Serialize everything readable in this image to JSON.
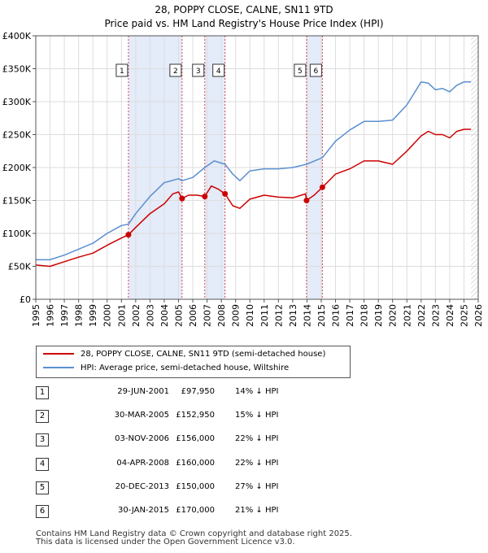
{
  "chart_data": {
    "type": "line",
    "title": "28, POPPY CLOSE, CALNE, SN11 9TD",
    "subtitle": "Price paid vs. HM Land Registry's House Price Index (HPI)",
    "xlabel": "",
    "ylabel": "",
    "xlim": [
      1995.0,
      2026.0
    ],
    "ylim": [
      0,
      400000
    ],
    "y_ticks": [
      0,
      50000,
      100000,
      150000,
      200000,
      250000,
      300000,
      350000,
      400000
    ],
    "y_tick_labels": [
      "£0",
      "£50K",
      "£100K",
      "£150K",
      "£200K",
      "£250K",
      "£300K",
      "£350K",
      "£400K"
    ],
    "x_ticks": [
      1995,
      1996,
      1997,
      1998,
      1999,
      2000,
      2001,
      2002,
      2003,
      2004,
      2005,
      2006,
      2007,
      2008,
      2009,
      2010,
      2011,
      2012,
      2013,
      2014,
      2015,
      2016,
      2017,
      2018,
      2019,
      2020,
      2021,
      2022,
      2023,
      2024,
      2025,
      2026
    ],
    "x_tick_labels": [
      "1995",
      "1996",
      "1997",
      "1998",
      "1999",
      "2000",
      "2001",
      "2002",
      "2003",
      "2004",
      "2005",
      "2006",
      "2007",
      "2008",
      "2009",
      "2010",
      "2011",
      "2012",
      "2013",
      "2014",
      "2015",
      "2016",
      "2017",
      "2018",
      "2019",
      "2020",
      "2021",
      "2022",
      "2023",
      "2024",
      "2025",
      "2026"
    ],
    "grid": true,
    "shaded_periods": [
      [
        2001.49,
        2005.25
      ],
      [
        2006.84,
        2008.26
      ],
      [
        2013.97,
        2015.08
      ]
    ],
    "future_hatch_from": 2025.5,
    "series": [
      {
        "name": "28, POPPY CLOSE, CALNE, SN11 9TD (semi-detached house)",
        "color": "#cc0000",
        "x": [
          1995.0,
          1996.0,
          1997.0,
          1998.0,
          1999.0,
          2000.0,
          2001.0,
          2001.49,
          2002.0,
          2003.0,
          2004.0,
          2004.6,
          2005.0,
          2005.25,
          2005.7,
          2006.3,
          2006.84,
          2007.3,
          2007.8,
          2008.26,
          2008.8,
          2009.3,
          2010.0,
          2011.0,
          2012.0,
          2013.0,
          2013.9,
          2013.97,
          2014.5,
          2015.08,
          2016.0,
          2017.0,
          2018.0,
          2019.0,
          2020.0,
          2021.0,
          2022.0,
          2022.5,
          2023.0,
          2023.5,
          2024.0,
          2024.5,
          2025.0,
          2025.5
        ],
        "values": [
          52000,
          50000,
          57000,
          64000,
          70000,
          82000,
          93000,
          97950,
          109000,
          130000,
          145000,
          160000,
          163000,
          152950,
          158000,
          158000,
          156000,
          172000,
          167000,
          160000,
          142000,
          138000,
          152000,
          158000,
          155000,
          154000,
          160000,
          150000,
          158000,
          170000,
          190000,
          198000,
          210000,
          210000,
          205000,
          225000,
          248000,
          255000,
          250000,
          250000,
          245000,
          255000,
          258000,
          258000
        ]
      },
      {
        "name": "HPI: Average price, semi-detached house, Wiltshire",
        "color": "#5b8fd0",
        "x": [
          1995.0,
          1996.0,
          1997.0,
          1998.0,
          1999.0,
          2000.0,
          2001.0,
          2001.49,
          2002.0,
          2003.0,
          2004.0,
          2005.0,
          2005.25,
          2006.0,
          2006.84,
          2007.5,
          2008.26,
          2008.8,
          2009.3,
          2010.0,
          2011.0,
          2012.0,
          2013.0,
          2013.97,
          2015.08,
          2016.0,
          2017.0,
          2018.0,
          2019.0,
          2020.0,
          2021.0,
          2022.0,
          2022.5,
          2023.0,
          2023.5,
          2024.0,
          2024.5,
          2025.0,
          2025.5
        ],
        "values": [
          60000,
          60000,
          67000,
          76000,
          85000,
          100000,
          112000,
          114000,
          130000,
          156000,
          177000,
          183000,
          180000,
          185000,
          200000,
          210000,
          205000,
          190000,
          180000,
          195000,
          198000,
          198000,
          200000,
          205000,
          215000,
          240000,
          257000,
          270000,
          270000,
          272000,
          295000,
          330000,
          328000,
          318000,
          320000,
          315000,
          325000,
          330000,
          330000
        ]
      }
    ],
    "sales_markers": [
      {
        "label": "1",
        "x": 2001.49,
        "y": 97950
      },
      {
        "label": "2",
        "x": 2005.25,
        "y": 152950
      },
      {
        "label": "3",
        "x": 2006.84,
        "y": 156000
      },
      {
        "label": "4",
        "x": 2008.26,
        "y": 160000
      },
      {
        "label": "5",
        "x": 2013.97,
        "y": 150000
      },
      {
        "label": "6",
        "x": 2015.08,
        "y": 170000
      }
    ]
  },
  "legend": {
    "property_label": "28, POPPY CLOSE, CALNE, SN11 9TD (semi-detached house)",
    "hpi_label": "HPI: Average price, semi-detached house, Wiltshire"
  },
  "sales": [
    {
      "num": "1",
      "date": "29-JUN-2001",
      "price": "£97,950",
      "hpi": "14% ↓ HPI"
    },
    {
      "num": "2",
      "date": "30-MAR-2005",
      "price": "£152,950",
      "hpi": "15% ↓ HPI"
    },
    {
      "num": "3",
      "date": "03-NOV-2006",
      "price": "£156,000",
      "hpi": "22% ↓ HPI"
    },
    {
      "num": "4",
      "date": "04-APR-2008",
      "price": "£160,000",
      "hpi": "22% ↓ HPI"
    },
    {
      "num": "5",
      "date": "20-DEC-2013",
      "price": "£150,000",
      "hpi": "27% ↓ HPI"
    },
    {
      "num": "6",
      "date": "30-JAN-2015",
      "price": "£170,000",
      "hpi": "21% ↓ HPI"
    }
  ],
  "footer": {
    "line1": "Contains HM Land Registry data © Crown copyright and database right 2025.",
    "line2": "This data is licensed under the Open Government Licence v3.0."
  }
}
